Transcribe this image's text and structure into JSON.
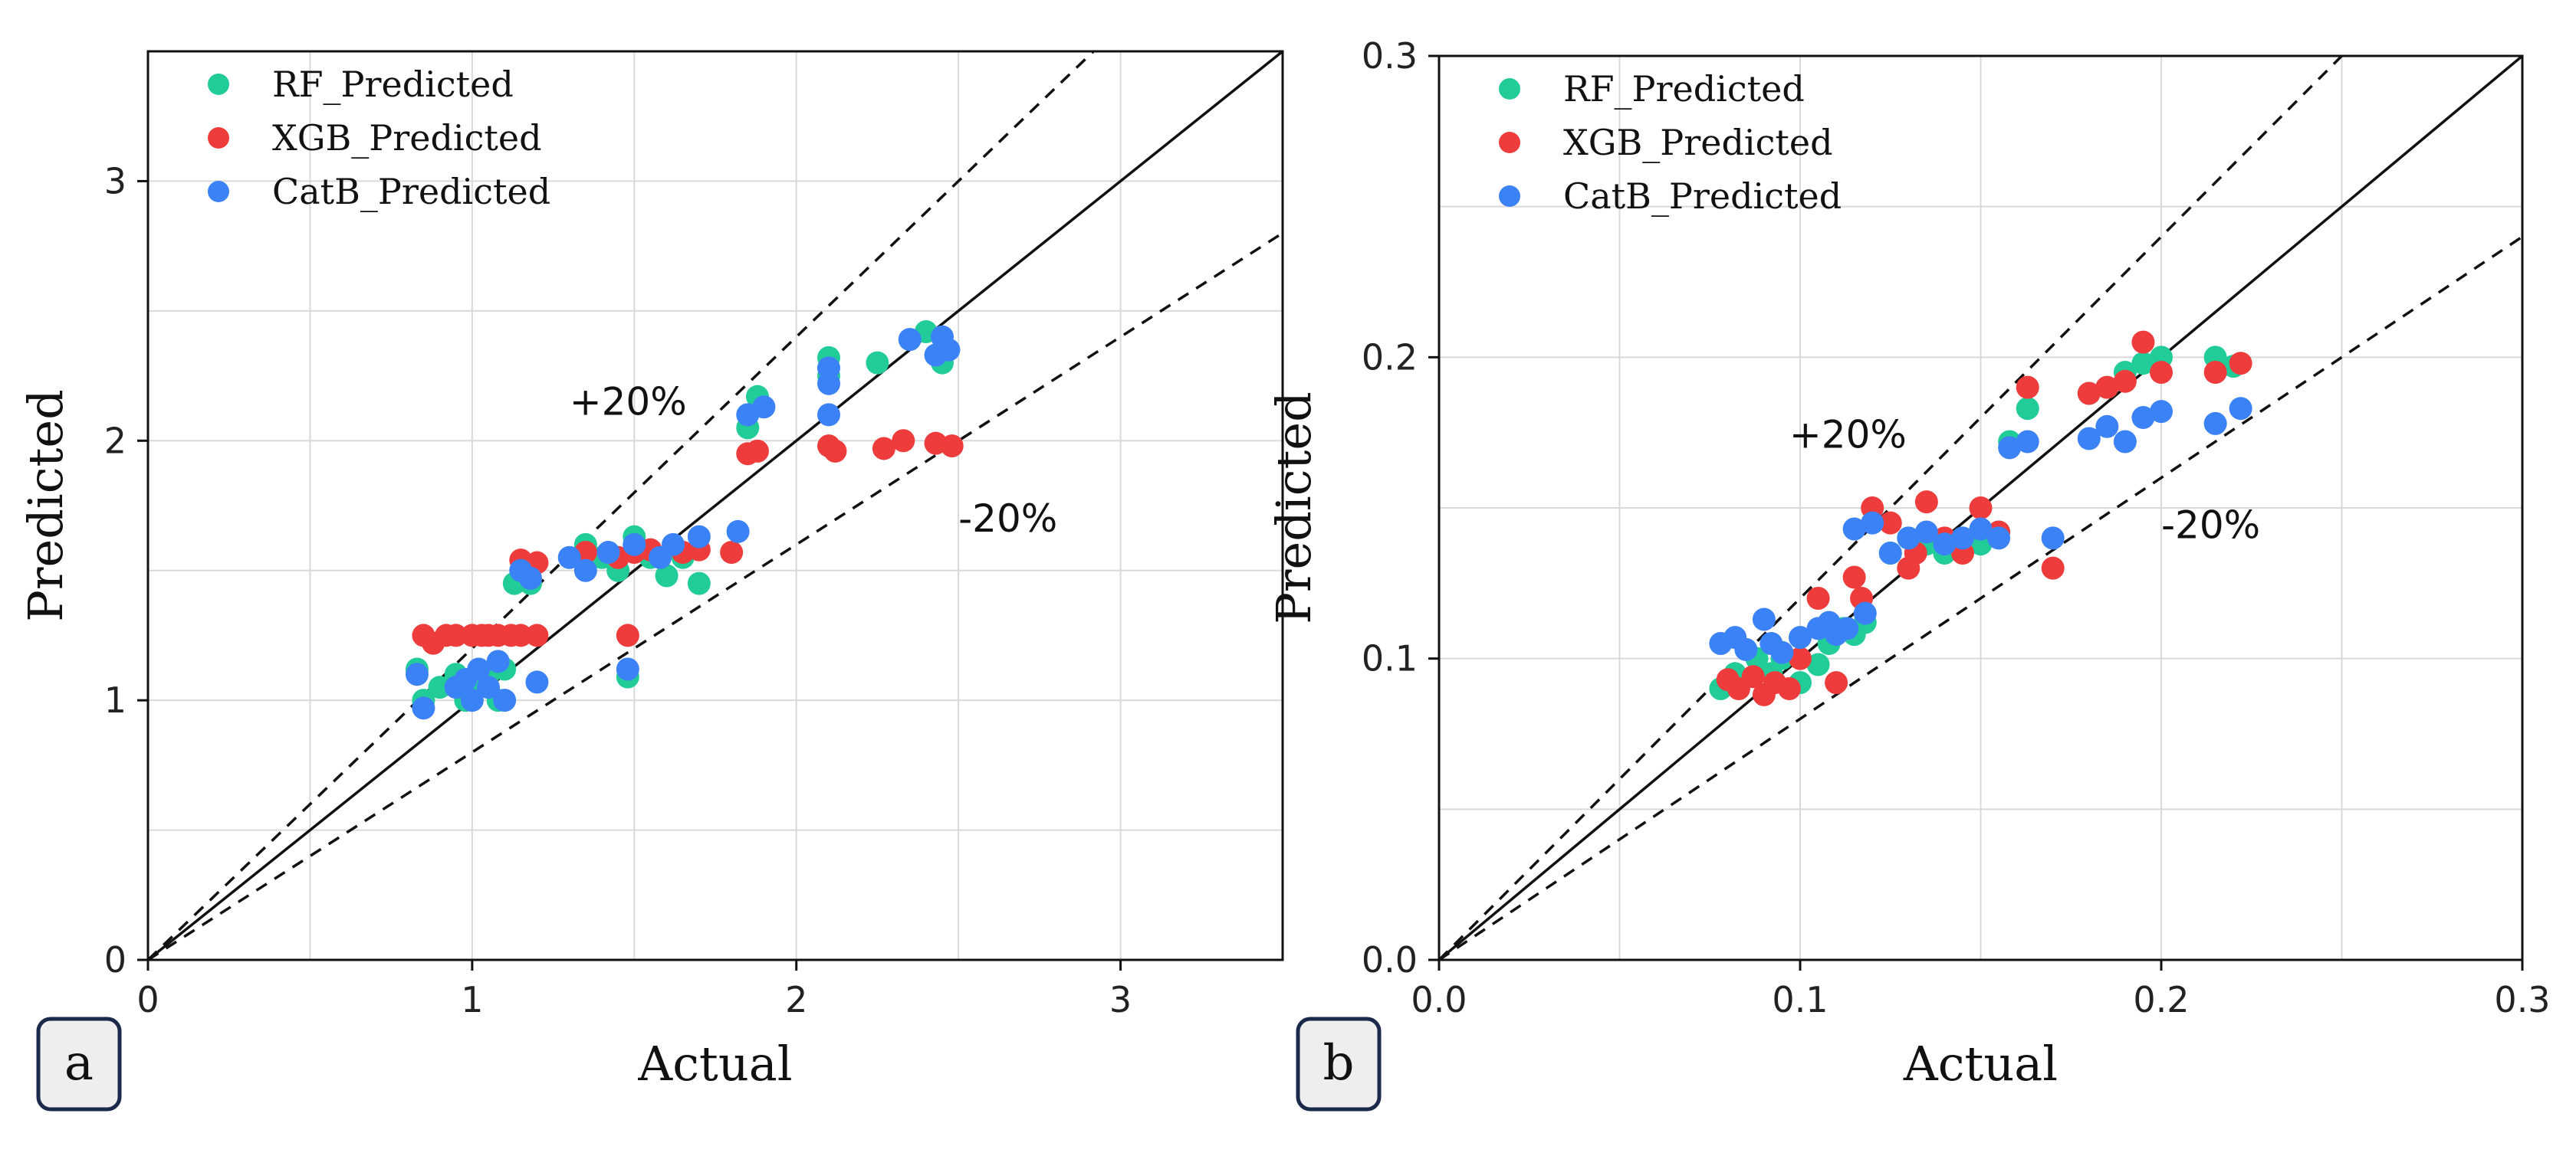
{
  "colors": {
    "rf": "#22cc99",
    "xgb": "#ee3b3b",
    "catb": "#3b82f6",
    "grid": "#d9d9d9",
    "badge_bg": "#eeeeee",
    "badge_border": "#1b2a4a"
  },
  "chart_data": [
    {
      "type": "scatter",
      "panel_label": "a",
      "xlabel": "Actual",
      "ylabel": "Predicted",
      "xlim": [
        0,
        3.5
      ],
      "ylim": [
        0,
        3.5
      ],
      "xticks": [
        0,
        1,
        2,
        3
      ],
      "yticks": [
        0,
        1,
        2,
        3
      ],
      "xtick_labels": [
        "0",
        "1",
        "2",
        "3"
      ],
      "ytick_labels": [
        "0",
        "1",
        "2",
        "3"
      ],
      "grid_step": 0.5,
      "grid": true,
      "legend_position": "top-left",
      "annotations": [
        {
          "text": "+20%",
          "x": 1.3,
          "y": 2.1
        },
        {
          "text": "-20%",
          "x": 2.5,
          "y": 1.65
        }
      ],
      "reference_lines": [
        {
          "name": "y=x",
          "slope": 1.0,
          "style": "solid"
        },
        {
          "name": "+20%",
          "slope": 1.2,
          "style": "dashed"
        },
        {
          "name": "-20%",
          "slope": 0.8,
          "style": "dashed"
        }
      ],
      "series": [
        {
          "name": "RF_Predicted",
          "color_key": "rf",
          "x": [
            0.83,
            0.85,
            0.9,
            0.95,
            0.98,
            1.0,
            1.02,
            1.05,
            1.08,
            1.1,
            1.13,
            1.15,
            1.18,
            1.35,
            1.4,
            1.45,
            1.5,
            1.55,
            1.6,
            1.65,
            1.7,
            1.48,
            1.85,
            1.88,
            2.1,
            2.1,
            2.25,
            2.4,
            2.45
          ],
          "y": [
            1.12,
            1.0,
            1.05,
            1.1,
            1.0,
            1.05,
            1.08,
            1.1,
            1.0,
            1.12,
            1.45,
            1.48,
            1.45,
            1.6,
            1.55,
            1.5,
            1.63,
            1.55,
            1.48,
            1.55,
            1.45,
            1.09,
            2.05,
            2.17,
            2.32,
            2.25,
            2.3,
            2.42,
            2.3
          ]
        },
        {
          "name": "XGB_Predicted",
          "color_key": "xgb",
          "x": [
            0.85,
            0.88,
            0.92,
            0.95,
            1.0,
            1.03,
            1.05,
            1.08,
            1.12,
            1.15,
            1.2,
            1.15,
            1.2,
            1.35,
            1.45,
            1.5,
            1.55,
            1.65,
            1.7,
            1.8,
            1.48,
            1.85,
            1.88,
            2.1,
            2.12,
            2.27,
            2.33,
            2.43,
            2.48
          ],
          "y": [
            1.25,
            1.22,
            1.25,
            1.25,
            1.25,
            1.25,
            1.25,
            1.25,
            1.25,
            1.25,
            1.25,
            1.54,
            1.53,
            1.57,
            1.55,
            1.57,
            1.58,
            1.57,
            1.58,
            1.57,
            1.25,
            1.95,
            1.96,
            1.98,
            1.96,
            1.97,
            2.0,
            1.99,
            1.98
          ],
          "y_note": "values estimated from gridlines"
        },
        {
          "name": "CatB_Predicted",
          "color_key": "catb",
          "x": [
            0.83,
            0.85,
            0.95,
            0.98,
            1.0,
            1.02,
            1.05,
            1.08,
            1.1,
            1.2,
            1.15,
            1.18,
            1.3,
            1.35,
            1.42,
            1.5,
            1.58,
            1.62,
            1.7,
            1.82,
            1.48,
            1.85,
            1.9,
            2.1,
            2.1,
            2.1,
            2.35,
            2.43,
            2.45,
            2.47
          ],
          "y": [
            1.1,
            0.97,
            1.05,
            1.08,
            1.0,
            1.12,
            1.05,
            1.15,
            1.0,
            1.07,
            1.5,
            1.47,
            1.55,
            1.5,
            1.57,
            1.6,
            1.55,
            1.6,
            1.63,
            1.65,
            1.12,
            2.1,
            2.13,
            2.28,
            2.22,
            2.1,
            2.39,
            2.33,
            2.4,
            2.35
          ]
        }
      ]
    },
    {
      "type": "scatter",
      "panel_label": "b",
      "xlabel": "Actual",
      "ylabel": "Predicted",
      "xlim": [
        0,
        0.3
      ],
      "ylim": [
        0,
        0.3
      ],
      "xticks": [
        0,
        0.1,
        0.2,
        0.3
      ],
      "yticks": [
        0,
        0.1,
        0.2,
        0.3
      ],
      "xtick_labels": [
        "0.0",
        "0.1",
        "0.2",
        "0.3"
      ],
      "ytick_labels": [
        "0.0",
        "0.1",
        "0.2",
        "0.3"
      ],
      "grid_step": 0.05,
      "grid": true,
      "legend_position": "top-left",
      "annotations": [
        {
          "text": "+20%",
          "x": 0.097,
          "y": 0.17
        },
        {
          "text": "-20%",
          "x": 0.2,
          "y": 0.14
        }
      ],
      "reference_lines": [
        {
          "name": "y=x",
          "slope": 1.0,
          "style": "solid"
        },
        {
          "name": "+20%",
          "slope": 1.2,
          "style": "dashed"
        },
        {
          "name": "-20%",
          "slope": 0.8,
          "style": "dashed"
        }
      ],
      "series": [
        {
          "name": "RF_Predicted",
          "color_key": "rf",
          "x": [
            0.078,
            0.082,
            0.088,
            0.092,
            0.095,
            0.1,
            0.105,
            0.108,
            0.112,
            0.115,
            0.118,
            0.125,
            0.13,
            0.135,
            0.14,
            0.145,
            0.15,
            0.155,
            0.158,
            0.163,
            0.18,
            0.185,
            0.19,
            0.195,
            0.2,
            0.215,
            0.22
          ],
          "y": [
            0.09,
            0.095,
            0.1,
            0.095,
            0.1,
            0.092,
            0.098,
            0.105,
            0.11,
            0.108,
            0.112,
            0.135,
            0.14,
            0.138,
            0.135,
            0.14,
            0.138,
            0.142,
            0.172,
            0.183,
            0.188,
            0.19,
            0.195,
            0.198,
            0.2,
            0.2,
            0.197
          ]
        },
        {
          "name": "XGB_Predicted",
          "color_key": "xgb",
          "x": [
            0.08,
            0.083,
            0.087,
            0.09,
            0.093,
            0.097,
            0.1,
            0.105,
            0.11,
            0.115,
            0.117,
            0.12,
            0.125,
            0.13,
            0.132,
            0.135,
            0.14,
            0.145,
            0.15,
            0.155,
            0.163,
            0.17,
            0.18,
            0.185,
            0.19,
            0.195,
            0.2,
            0.215,
            0.222
          ],
          "y": [
            0.093,
            0.09,
            0.094,
            0.088,
            0.092,
            0.09,
            0.1,
            0.12,
            0.092,
            0.127,
            0.12,
            0.15,
            0.145,
            0.13,
            0.135,
            0.152,
            0.14,
            0.135,
            0.15,
            0.142,
            0.19,
            0.13,
            0.188,
            0.19,
            0.192,
            0.205,
            0.195,
            0.195,
            0.198
          ]
        },
        {
          "name": "CatB_Predicted",
          "color_key": "catb",
          "x": [
            0.078,
            0.082,
            0.085,
            0.09,
            0.092,
            0.095,
            0.1,
            0.105,
            0.108,
            0.11,
            0.113,
            0.115,
            0.118,
            0.12,
            0.125,
            0.13,
            0.135,
            0.14,
            0.145,
            0.15,
            0.155,
            0.158,
            0.163,
            0.17,
            0.18,
            0.185,
            0.19,
            0.195,
            0.2,
            0.215,
            0.222
          ],
          "y": [
            0.105,
            0.107,
            0.103,
            0.113,
            0.105,
            0.102,
            0.107,
            0.11,
            0.112,
            0.108,
            0.11,
            0.143,
            0.115,
            0.145,
            0.135,
            0.14,
            0.142,
            0.138,
            0.14,
            0.143,
            0.14,
            0.17,
            0.172,
            0.14,
            0.173,
            0.177,
            0.172,
            0.18,
            0.182,
            0.178,
            0.183
          ]
        }
      ]
    }
  ]
}
